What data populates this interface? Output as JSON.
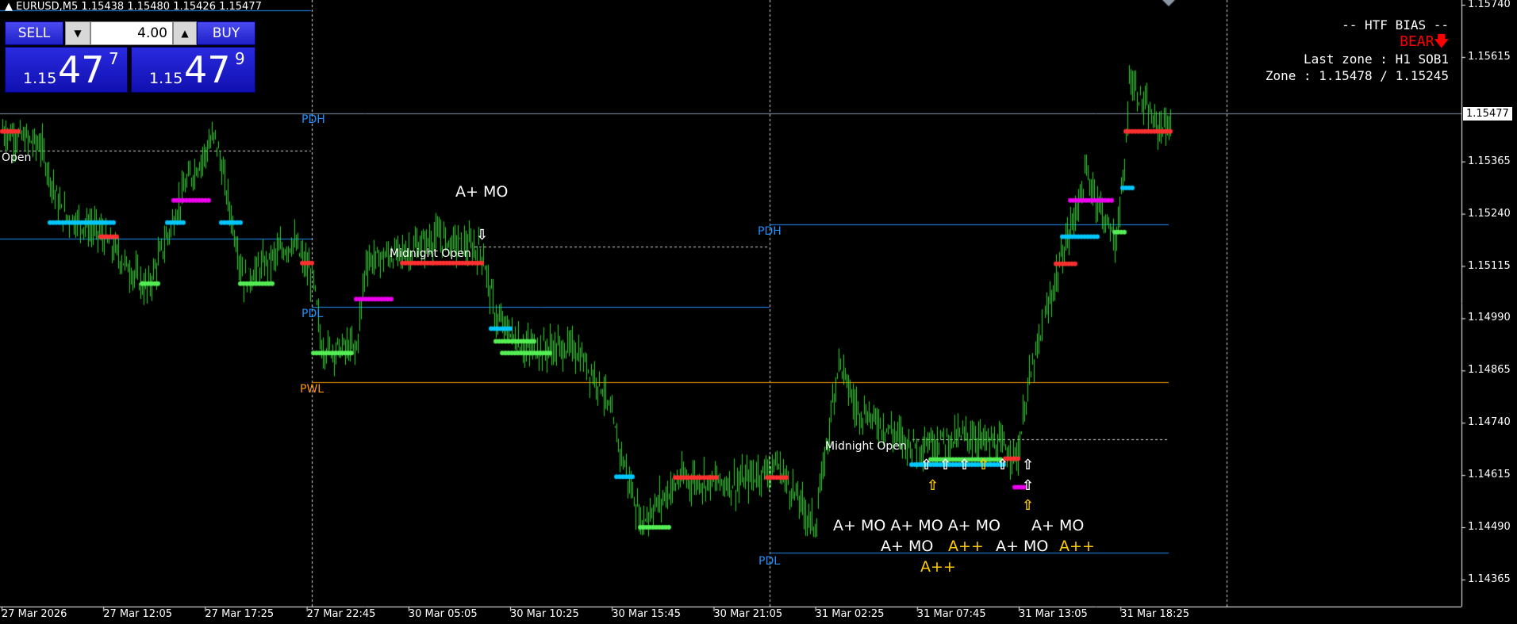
{
  "header": {
    "symbol_info": "EURUSD,M5  1.15438 1.15480 1.15426 1.15477",
    "collapse_icon": "triangle-up-icon"
  },
  "trade_panel": {
    "sell_label": "SELL",
    "buy_label": "BUY",
    "volume": "4.00",
    "sell_price": {
      "prefix": "1.15",
      "big": "47",
      "small": "7"
    },
    "buy_price": {
      "prefix": "1.15",
      "big": "47",
      "small": "9"
    }
  },
  "htf": {
    "title": "-- HTF BIAS --",
    "bias": "BEAR",
    "bias_icon": "arrow-down-icon",
    "bias_color": "#ff0000",
    "last_zone": "Last zone : H1 SOB1",
    "zone": "Zone : 1.15478 / 1.15245"
  },
  "levels": {
    "pdh1": "PDH",
    "pdl1": "PDL",
    "pwl": "PWL",
    "open": "Open",
    "midnight1": "Midnight Open",
    "pdh2": "PDH",
    "pdl2": "PDL",
    "midnight2": "Midnight Open"
  },
  "signals": {
    "aplus_mo": "A+ MO",
    "aplusplus": "A++",
    "overlap": "A+ MO A+ MO A+ MO"
  },
  "price_axis": [
    "1.15740",
    "1.15615",
    "1.15365",
    "1.15240",
    "1.15115",
    "1.14990",
    "1.14865",
    "1.14740",
    "1.14615",
    "1.14490",
    "1.14365"
  ],
  "current_price": "1.15477",
  "time_axis": [
    "27 Mar 2026",
    "27 Mar 12:05",
    "27 Mar 17:25",
    "27 Mar 22:45",
    "30 Mar 05:05",
    "30 Mar 10:25",
    "30 Mar 15:45",
    "30 Mar 21:05",
    "31 Mar 02:25",
    "31 Mar 07:45",
    "31 Mar 13:05",
    "31 Mar 18:25"
  ],
  "colors": {
    "candle": "#22dd22",
    "level_blue": "#1e90ff",
    "pwl": "#ff9900",
    "bear": "#ff0000",
    "cyan": "#00c8ff",
    "green": "#55ee55",
    "red": "#ff3030",
    "magenta": "#ee00ee",
    "yellow": "#ffcc00"
  },
  "chart_data": {
    "type": "ohlc",
    "symbol": "EURUSD",
    "timeframe": "M5",
    "ylim": [
      1.143,
      1.1576
    ],
    "price_path": [
      [
        0,
        1.15439
      ],
      [
        24,
        1.15404
      ],
      [
        37,
        1.15242
      ],
      [
        61,
        1.15196
      ],
      [
        91,
        1.15057
      ],
      [
        116,
        1.15312
      ],
      [
        134,
        1.15427
      ],
      [
        152,
        1.1508
      ],
      [
        183,
        1.15173
      ],
      [
        196,
        1.1508
      ],
      [
        201,
        1.14918
      ],
      [
        223,
        1.14918
      ],
      [
        229,
        1.15127
      ],
      [
        256,
        1.1515
      ],
      [
        274,
        1.15184
      ],
      [
        302,
        1.1515
      ],
      [
        311,
        1.14988
      ],
      [
        329,
        1.14918
      ],
      [
        360,
        1.14918
      ],
      [
        378,
        1.14826
      ],
      [
        402,
        1.14502
      ],
      [
        427,
        1.14606
      ],
      [
        463,
        1.14594
      ],
      [
        488,
        1.1464
      ],
      [
        512,
        1.1449
      ],
      [
        527,
        1.14895
      ],
      [
        537,
        1.14779
      ],
      [
        573,
        1.14687
      ],
      [
        610,
        1.1471
      ],
      [
        640,
        1.14664
      ],
      [
        646,
        1.14826
      ],
      [
        665,
        1.15103
      ],
      [
        683,
        1.15335
      ],
      [
        701,
        1.15173
      ],
      [
        707,
        1.15335
      ],
      [
        710,
        1.15566
      ],
      [
        726,
        1.15451
      ],
      [
        736,
        1.15451
      ]
    ],
    "markers": [
      [
        0,
        10,
        1.15437,
        "red"
      ],
      [
        30,
        70,
        1.15219,
        "cyan"
      ],
      [
        62,
        72,
        1.15185,
        "red"
      ],
      [
        88,
        98,
        1.15073,
        "green"
      ],
      [
        108,
        130,
        1.15272,
        "magenta"
      ],
      [
        104,
        115,
        1.15219,
        "cyan"
      ],
      [
        138,
        150,
        1.15219,
        "cyan"
      ],
      [
        150,
        170,
        1.15073,
        "green"
      ],
      [
        189,
        196,
        1.15122,
        "red"
      ],
      [
        196,
        220,
        1.14907,
        "green"
      ],
      [
        223,
        245,
        1.15036,
        "magenta"
      ],
      [
        252,
        302,
        1.15122,
        "red"
      ],
      [
        308,
        320,
        1.14965,
        "cyan"
      ],
      [
        311,
        335,
        1.14935,
        "green"
      ],
      [
        315,
        345,
        1.14907,
        "green"
      ],
      [
        387,
        398,
        1.14611,
        "cyan"
      ],
      [
        402,
        420,
        1.1449,
        "green"
      ],
      [
        424,
        450,
        1.14609,
        "red"
      ],
      [
        482,
        495,
        1.14609,
        "red"
      ],
      [
        573,
        632,
        1.1464,
        "cyan"
      ],
      [
        585,
        630,
        1.14652,
        "green"
      ],
      [
        632,
        640,
        1.14654,
        "red"
      ],
      [
        638,
        645,
        1.14586,
        "magenta"
      ],
      [
        668,
        690,
        1.15185,
        "cyan"
      ],
      [
        664,
        676,
        1.1512,
        "red"
      ],
      [
        673,
        700,
        1.15272,
        "magenta"
      ],
      [
        708,
        736,
        1.15437,
        "red"
      ],
      [
        706,
        713,
        1.15302,
        "cyan"
      ],
      [
        701,
        708,
        1.15196,
        "green"
      ]
    ]
  }
}
